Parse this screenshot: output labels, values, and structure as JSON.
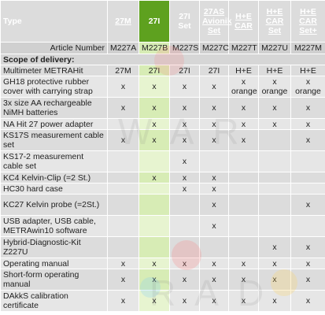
{
  "header": {
    "type_label": "Type",
    "columns": [
      {
        "label": "27M",
        "link": true
      },
      {
        "label": "27I",
        "link": false
      },
      {
        "label": "27I Set",
        "link": false
      },
      {
        "label": "27AS Avionik Set",
        "link": true
      },
      {
        "label": "H+E CAR",
        "link": true
      },
      {
        "label": "H+E CAR Set",
        "link": true
      },
      {
        "label": "H+E CAR Set+",
        "link": true
      }
    ]
  },
  "article": {
    "label": "Article Number",
    "values": [
      "M227A",
      "M227B",
      "M227S",
      "M227C",
      "M227T",
      "M227U",
      "M227M"
    ]
  },
  "section_title": "Scope of delivery:",
  "rows": [
    {
      "label": "Multimeter METRAHit",
      "values": [
        "27M",
        "27I",
        "27I",
        "27I",
        "H+E",
        "H+E",
        "H+E"
      ],
      "tall": false
    },
    {
      "label": "GH18 protective rubber cover with carrying strap",
      "values": [
        "x",
        "x",
        "x",
        "x",
        "x\norange",
        "x\norange",
        "x\norange"
      ],
      "tall": true
    },
    {
      "label": "3x size AA rechargeable NiMH batteries",
      "values": [
        "x",
        "x",
        "x",
        "x",
        "x",
        "x",
        "x"
      ],
      "tall": true
    },
    {
      "label": "NA Hit 27 power adapter",
      "values": [
        "",
        "x",
        "x",
        "x",
        "x",
        "x",
        "x"
      ],
      "tall": false
    },
    {
      "label": "KS17S measurement cable set",
      "values": [
        "x",
        "x",
        "x",
        "x",
        "x",
        "",
        "x"
      ],
      "tall": true
    },
    {
      "label": "KS17-2 measurement cable set",
      "values": [
        "",
        "",
        "x",
        "",
        "",
        "",
        ""
      ],
      "tall": true
    },
    {
      "label": "KC4 Kelvin-Clip (=2 St.)",
      "values": [
        "",
        "x",
        "x",
        "x",
        "",
        "",
        ""
      ],
      "tall": false
    },
    {
      "label": "HC30 hard case",
      "values": [
        "",
        "",
        "x",
        "x",
        "",
        "",
        ""
      ],
      "tall": false
    },
    {
      "label": "KC27 Kelvin probe (=2St.)",
      "values": [
        "",
        "",
        "",
        "x",
        "",
        "",
        "x"
      ],
      "tall": true
    },
    {
      "label": "USB adapter, USB cable, METRAwin10 software",
      "values": [
        "",
        "",
        "",
        "x",
        "",
        "",
        ""
      ],
      "tall": true
    },
    {
      "label": "Hybrid-Diagnostic-Kit Z227U",
      "values": [
        "",
        "",
        "",
        "",
        "",
        "x",
        "x"
      ],
      "tall": true
    },
    {
      "label": "Operating manual",
      "values": [
        "x",
        "x",
        "x",
        "x",
        "x",
        "x",
        "x"
      ],
      "tall": false
    },
    {
      "label": "Short-form operating manual",
      "values": [
        "x",
        "x",
        "x",
        "x",
        "x",
        "x",
        "x"
      ],
      "tall": true
    },
    {
      "label": "DAkkS calibration certificate",
      "values": [
        "x",
        "x",
        "x",
        "x",
        "x",
        "x",
        "x"
      ],
      "tall": true
    }
  ],
  "watermark": "RADWAR",
  "colors": {
    "header_green": "#7bbd2f",
    "selected_header": "#5ea11f",
    "selected_column": "#d7ecb5",
    "row_gray": "#dcdcdc"
  }
}
